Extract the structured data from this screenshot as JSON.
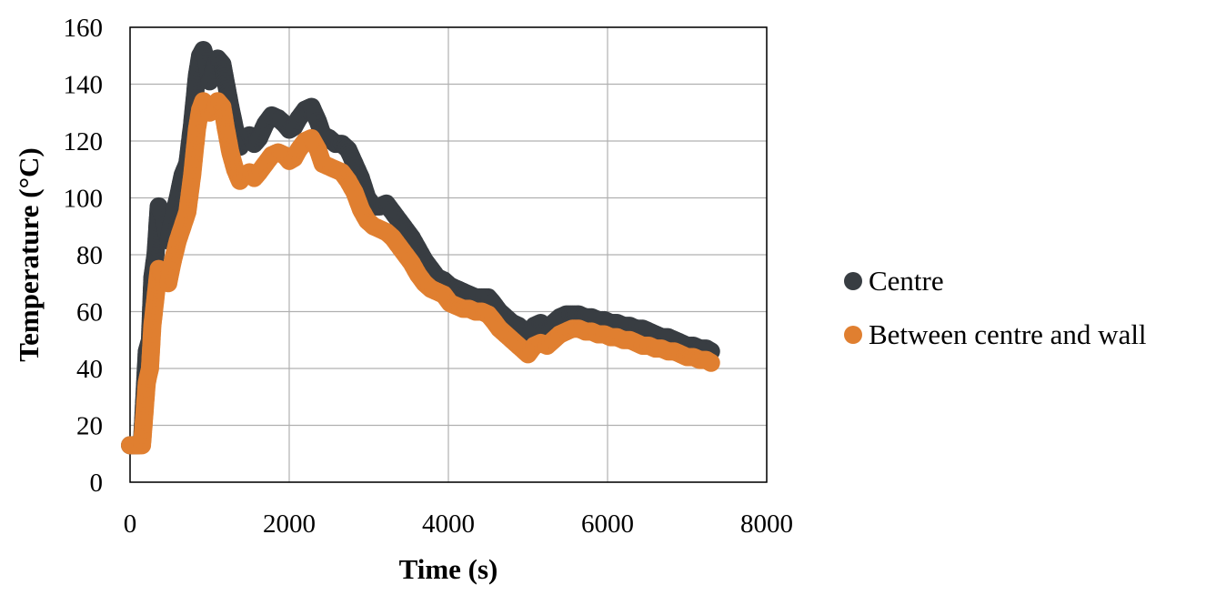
{
  "chart_data": {
    "type": "scatter",
    "title": "",
    "xlabel": "Time (s)",
    "ylabel": "Temperature (°C)",
    "xlim": [
      0,
      8000
    ],
    "ylim": [
      0,
      160
    ],
    "xticks": [
      "0",
      "2000",
      "4000",
      "6000",
      "8000"
    ],
    "yticks": [
      "0",
      "20",
      "40",
      "60",
      "80",
      "100",
      "120",
      "140",
      "160"
    ],
    "grid": true,
    "legend_position": "right",
    "series": [
      {
        "name": "Centre",
        "color": "#383d42",
        "points": [
          [
            0,
            13
          ],
          [
            100,
            13
          ],
          [
            150,
            14
          ],
          [
            180,
            30
          ],
          [
            210,
            46
          ],
          [
            250,
            50
          ],
          [
            280,
            72
          ],
          [
            320,
            80
          ],
          [
            360,
            97
          ],
          [
            420,
            93
          ],
          [
            480,
            85
          ],
          [
            530,
            92
          ],
          [
            600,
            100
          ],
          [
            660,
            108
          ],
          [
            720,
            112
          ],
          [
            780,
            126
          ],
          [
            840,
            143
          ],
          [
            880,
            150
          ],
          [
            920,
            152
          ],
          [
            960,
            148
          ],
          [
            1000,
            141
          ],
          [
            1060,
            146
          ],
          [
            1100,
            149
          ],
          [
            1160,
            147
          ],
          [
            1200,
            141
          ],
          [
            1260,
            132
          ],
          [
            1320,
            124
          ],
          [
            1380,
            118
          ],
          [
            1440,
            121
          ],
          [
            1500,
            122
          ],
          [
            1560,
            119
          ],
          [
            1620,
            121
          ],
          [
            1700,
            126
          ],
          [
            1780,
            129
          ],
          [
            1860,
            128
          ],
          [
            1940,
            126
          ],
          [
            2000,
            124
          ],
          [
            2060,
            125
          ],
          [
            2120,
            128
          ],
          [
            2200,
            131
          ],
          [
            2280,
            132
          ],
          [
            2360,
            127
          ],
          [
            2420,
            122
          ],
          [
            2500,
            121
          ],
          [
            2580,
            119
          ],
          [
            2660,
            119
          ],
          [
            2740,
            117
          ],
          [
            2820,
            112
          ],
          [
            2900,
            107
          ],
          [
            2980,
            100
          ],
          [
            3060,
            97
          ],
          [
            3140,
            97
          ],
          [
            3220,
            98
          ],
          [
            3300,
            95
          ],
          [
            3380,
            92
          ],
          [
            3460,
            89
          ],
          [
            3540,
            86
          ],
          [
            3620,
            82
          ],
          [
            3700,
            78
          ],
          [
            3780,
            75
          ],
          [
            3860,
            72
          ],
          [
            3940,
            71
          ],
          [
            4020,
            69
          ],
          [
            4100,
            68
          ],
          [
            4180,
            67
          ],
          [
            4260,
            66
          ],
          [
            4340,
            65
          ],
          [
            4420,
            65
          ],
          [
            4500,
            65
          ],
          [
            4560,
            63
          ],
          [
            4640,
            60
          ],
          [
            4720,
            58
          ],
          [
            4800,
            56
          ],
          [
            4880,
            55
          ],
          [
            4960,
            53
          ],
          [
            5000,
            52
          ],
          [
            5080,
            55
          ],
          [
            5160,
            56
          ],
          [
            5240,
            54
          ],
          [
            5320,
            56
          ],
          [
            5400,
            58
          ],
          [
            5480,
            59
          ],
          [
            5560,
            59
          ],
          [
            5640,
            59
          ],
          [
            5720,
            58
          ],
          [
            5800,
            58
          ],
          [
            5880,
            57
          ],
          [
            5960,
            57
          ],
          [
            6040,
            56
          ],
          [
            6120,
            56
          ],
          [
            6200,
            55
          ],
          [
            6280,
            55
          ],
          [
            6360,
            54
          ],
          [
            6440,
            54
          ],
          [
            6520,
            53
          ],
          [
            6600,
            52
          ],
          [
            6680,
            51
          ],
          [
            6760,
            51
          ],
          [
            6840,
            50
          ],
          [
            6920,
            49
          ],
          [
            7000,
            48
          ],
          [
            7080,
            48
          ],
          [
            7160,
            47
          ],
          [
            7240,
            47
          ],
          [
            7300,
            46
          ]
        ]
      },
      {
        "name": "Between centre and wall",
        "color": "#e07f30",
        "points": [
          [
            0,
            13
          ],
          [
            100,
            13
          ],
          [
            150,
            13
          ],
          [
            180,
            24
          ],
          [
            210,
            35
          ],
          [
            250,
            40
          ],
          [
            280,
            55
          ],
          [
            320,
            65
          ],
          [
            360,
            75
          ],
          [
            420,
            72
          ],
          [
            480,
            70
          ],
          [
            530,
            77
          ],
          [
            600,
            85
          ],
          [
            660,
            90
          ],
          [
            720,
            95
          ],
          [
            780,
            108
          ],
          [
            840,
            124
          ],
          [
            880,
            131
          ],
          [
            920,
            134
          ],
          [
            960,
            133
          ],
          [
            1000,
            130
          ],
          [
            1060,
            131
          ],
          [
            1100,
            134
          ],
          [
            1160,
            132
          ],
          [
            1200,
            125
          ],
          [
            1260,
            116
          ],
          [
            1320,
            110
          ],
          [
            1380,
            106
          ],
          [
            1440,
            108
          ],
          [
            1500,
            109
          ],
          [
            1560,
            107
          ],
          [
            1620,
            109
          ],
          [
            1700,
            112
          ],
          [
            1780,
            115
          ],
          [
            1860,
            116
          ],
          [
            1940,
            115
          ],
          [
            2000,
            113
          ],
          [
            2060,
            114
          ],
          [
            2120,
            117
          ],
          [
            2200,
            120
          ],
          [
            2280,
            121
          ],
          [
            2360,
            117
          ],
          [
            2420,
            112
          ],
          [
            2500,
            111
          ],
          [
            2580,
            110
          ],
          [
            2660,
            109
          ],
          [
            2740,
            106
          ],
          [
            2820,
            102
          ],
          [
            2900,
            96
          ],
          [
            2980,
            92
          ],
          [
            3060,
            90
          ],
          [
            3140,
            89
          ],
          [
            3220,
            88
          ],
          [
            3300,
            86
          ],
          [
            3380,
            83
          ],
          [
            3460,
            80
          ],
          [
            3540,
            77
          ],
          [
            3620,
            73
          ],
          [
            3700,
            70
          ],
          [
            3780,
            68
          ],
          [
            3860,
            67
          ],
          [
            3940,
            66
          ],
          [
            4020,
            63
          ],
          [
            4100,
            62
          ],
          [
            4180,
            61
          ],
          [
            4260,
            61
          ],
          [
            4340,
            60
          ],
          [
            4420,
            60
          ],
          [
            4500,
            59
          ],
          [
            4560,
            57
          ],
          [
            4640,
            54
          ],
          [
            4720,
            52
          ],
          [
            4800,
            50
          ],
          [
            4880,
            48
          ],
          [
            4960,
            46
          ],
          [
            5000,
            45
          ],
          [
            5080,
            48
          ],
          [
            5160,
            49
          ],
          [
            5240,
            48
          ],
          [
            5320,
            50
          ],
          [
            5400,
            52
          ],
          [
            5480,
            53
          ],
          [
            5560,
            54
          ],
          [
            5640,
            54
          ],
          [
            5720,
            53
          ],
          [
            5800,
            53
          ],
          [
            5880,
            52
          ],
          [
            5960,
            52
          ],
          [
            6040,
            51
          ],
          [
            6120,
            51
          ],
          [
            6200,
            50
          ],
          [
            6280,
            50
          ],
          [
            6360,
            49
          ],
          [
            6440,
            48
          ],
          [
            6520,
            48
          ],
          [
            6600,
            47
          ],
          [
            6680,
            47
          ],
          [
            6760,
            46
          ],
          [
            6840,
            46
          ],
          [
            6920,
            45
          ],
          [
            7000,
            44
          ],
          [
            7080,
            44
          ],
          [
            7160,
            43
          ],
          [
            7240,
            43
          ],
          [
            7300,
            42
          ]
        ]
      }
    ]
  }
}
